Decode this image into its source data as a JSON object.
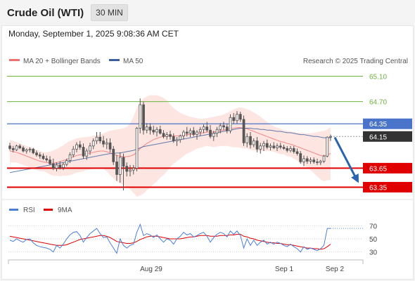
{
  "header": {
    "title": "Crude Oil (WTI)",
    "timeframe": "30 MIN",
    "datetime": "Monday, September 1, 2025 9:08:36 AM CET"
  },
  "colors": {
    "resistance_green": "#6db33f",
    "pivot_blue": "#4a74c9",
    "support_red": "#e00000",
    "current_dark": "#333333",
    "ma20": "#f07070",
    "ma50": "#3a5fa0",
    "bollinger": "#fde0dc",
    "candle": "#555555",
    "rsi": "#4a7fd4",
    "rsi_ma": "#e00000",
    "arrow": "#2a64ad"
  },
  "chart_data": [
    {
      "type": "candlestick",
      "title": "",
      "legend": [
        {
          "name": "MA 20 + Bollinger Bands",
          "color": "#f07070"
        },
        {
          "name": "MA 50",
          "color": "#3a5fa0"
        }
      ],
      "legend_placement": "top-left",
      "watermark": "Research © 2025 Trading Central",
      "x_ticks": [
        "Aug 29",
        "Sep 1",
        "Sep 2"
      ],
      "ylim": [
        63.2,
        65.25
      ],
      "levels": [
        {
          "value": 65.1,
          "label": "65.10",
          "kind": "resistance"
        },
        {
          "value": 64.7,
          "label": "64.70",
          "kind": "resistance"
        },
        {
          "value": 64.35,
          "label": "64.35",
          "kind": "pivot"
        },
        {
          "value": 64.15,
          "label": "64.15",
          "kind": "current"
        },
        {
          "value": 63.65,
          "label": "63.65",
          "kind": "support"
        },
        {
          "value": 63.35,
          "label": "63.35",
          "kind": "support"
        }
      ],
      "ohlc": [
        [
          64.0,
          64.05,
          63.93,
          63.96
        ],
        [
          63.96,
          64.0,
          63.9,
          63.94
        ],
        [
          63.94,
          64.02,
          63.92,
          64.0
        ],
        [
          64.0,
          64.03,
          63.95,
          63.97
        ],
        [
          63.97,
          64.0,
          63.9,
          63.92
        ],
        [
          63.92,
          63.96,
          63.88,
          63.94
        ],
        [
          63.94,
          63.98,
          63.9,
          63.95
        ],
        [
          63.95,
          63.97,
          63.87,
          63.89
        ],
        [
          63.89,
          63.93,
          63.83,
          63.86
        ],
        [
          63.86,
          63.9,
          63.8,
          63.84
        ],
        [
          63.84,
          63.88,
          63.78,
          63.8
        ],
        [
          63.8,
          63.85,
          63.75,
          63.78
        ],
        [
          63.78,
          63.84,
          63.7,
          63.72
        ],
        [
          63.72,
          63.8,
          63.62,
          63.65
        ],
        [
          63.65,
          63.74,
          63.6,
          63.7
        ],
        [
          63.7,
          63.76,
          63.63,
          63.66
        ],
        [
          63.66,
          63.74,
          63.62,
          63.71
        ],
        [
          63.71,
          63.8,
          63.68,
          63.77
        ],
        [
          63.77,
          63.9,
          63.73,
          63.86
        ],
        [
          63.86,
          64.0,
          63.82,
          63.95
        ],
        [
          63.95,
          64.06,
          63.9,
          64.02
        ],
        [
          64.02,
          64.08,
          63.94,
          63.98
        ],
        [
          63.98,
          64.04,
          63.8,
          63.84
        ],
        [
          63.84,
          63.96,
          63.78,
          63.92
        ],
        [
          63.92,
          64.05,
          63.86,
          64.0
        ],
        [
          64.0,
          64.12,
          63.95,
          64.08
        ],
        [
          64.08,
          64.22,
          64.03,
          64.14
        ],
        [
          64.14,
          64.22,
          64.04,
          64.08
        ],
        [
          64.08,
          64.16,
          63.98,
          64.03
        ],
        [
          64.03,
          64.12,
          63.95,
          64.05
        ],
        [
          64.05,
          64.12,
          63.9,
          63.95
        ],
        [
          63.95,
          64.0,
          63.7,
          63.75
        ],
        [
          63.75,
          63.86,
          63.45,
          63.55
        ],
        [
          63.55,
          63.9,
          63.42,
          63.82
        ],
        [
          63.82,
          63.88,
          63.3,
          63.68
        ],
        [
          63.68,
          63.74,
          63.52,
          63.6
        ],
        [
          63.6,
          63.7,
          63.52,
          63.62
        ],
        [
          63.62,
          63.7,
          63.55,
          63.65
        ],
        [
          63.65,
          64.3,
          63.6,
          64.28
        ],
        [
          64.28,
          64.75,
          64.2,
          64.65
        ],
        [
          64.65,
          64.7,
          64.18,
          64.25
        ],
        [
          64.25,
          64.36,
          64.2,
          64.3
        ],
        [
          64.3,
          64.36,
          64.18,
          64.25
        ],
        [
          64.25,
          64.32,
          64.18,
          64.22
        ],
        [
          64.22,
          64.3,
          64.15,
          64.26
        ],
        [
          64.26,
          64.32,
          64.18,
          64.2
        ],
        [
          64.2,
          64.25,
          64.12,
          64.15
        ],
        [
          64.15,
          64.22,
          64.1,
          64.18
        ],
        [
          64.18,
          64.24,
          64.1,
          64.15
        ],
        [
          64.15,
          64.2,
          64.05,
          64.08
        ],
        [
          64.08,
          64.14,
          64.0,
          64.1
        ],
        [
          64.1,
          64.18,
          64.05,
          64.16
        ],
        [
          64.16,
          64.25,
          64.1,
          64.22
        ],
        [
          64.22,
          64.3,
          64.15,
          64.2
        ],
        [
          64.2,
          64.28,
          64.14,
          64.24
        ],
        [
          64.24,
          64.3,
          64.15,
          64.18
        ],
        [
          64.18,
          64.25,
          64.1,
          64.22
        ],
        [
          64.22,
          64.3,
          64.16,
          64.26
        ],
        [
          64.26,
          64.34,
          64.2,
          64.3
        ],
        [
          64.3,
          64.38,
          64.22,
          64.25
        ],
        [
          64.25,
          64.33,
          64.12,
          64.15
        ],
        [
          64.15,
          64.24,
          64.08,
          64.2
        ],
        [
          64.2,
          64.3,
          64.14,
          64.26
        ],
        [
          64.26,
          64.36,
          64.2,
          64.32
        ],
        [
          64.32,
          64.38,
          64.25,
          64.3
        ],
        [
          64.3,
          64.35,
          64.2,
          64.24
        ],
        [
          64.24,
          64.5,
          64.2,
          64.45
        ],
        [
          64.45,
          64.52,
          64.35,
          64.4
        ],
        [
          64.4,
          64.55,
          64.35,
          64.5
        ],
        [
          64.5,
          64.54,
          64.38,
          64.42
        ],
        [
          64.42,
          64.48,
          64.0,
          64.05
        ],
        [
          64.05,
          64.2,
          63.98,
          64.15
        ],
        [
          64.15,
          64.22,
          63.96,
          64.02
        ],
        [
          64.02,
          64.12,
          63.98,
          64.08
        ],
        [
          64.08,
          64.14,
          63.9,
          63.95
        ],
        [
          63.95,
          64.05,
          63.88,
          64.0
        ],
        [
          64.0,
          64.08,
          63.92,
          64.04
        ],
        [
          64.04,
          64.1,
          63.95,
          63.98
        ],
        [
          63.98,
          64.04,
          63.93,
          64.0
        ],
        [
          64.0,
          64.06,
          63.95,
          63.97
        ],
        [
          63.97,
          64.04,
          63.92,
          64.0
        ],
        [
          64.0,
          64.05,
          63.95,
          63.98
        ],
        [
          63.98,
          64.02,
          63.94,
          63.96
        ],
        [
          63.96,
          64.0,
          63.9,
          63.93
        ],
        [
          63.93,
          64.0,
          63.9,
          63.96
        ],
        [
          63.96,
          64.0,
          63.88,
          63.91
        ],
        [
          63.91,
          63.96,
          63.85,
          63.88
        ],
        [
          63.88,
          63.92,
          63.72,
          63.75
        ],
        [
          63.75,
          63.85,
          63.68,
          63.8
        ],
        [
          63.8,
          63.84,
          63.72,
          63.76
        ],
        [
          63.76,
          63.82,
          63.72,
          63.78
        ],
        [
          63.78,
          63.82,
          63.72,
          63.75
        ],
        [
          63.75,
          63.8,
          63.7,
          63.74
        ],
        [
          63.74,
          63.78,
          63.7,
          63.76
        ],
        [
          63.76,
          63.86,
          63.73,
          63.84
        ],
        [
          63.84,
          64.15,
          63.82,
          64.14
        ],
        [
          64.14,
          64.18,
          64.08,
          64.15
        ]
      ],
      "ma20": [
        63.92,
        63.91,
        63.9,
        63.88,
        63.86,
        63.84,
        63.82,
        63.8,
        63.78,
        63.76,
        63.75,
        63.74,
        63.73,
        63.73,
        63.74,
        63.75,
        63.77,
        63.79,
        63.81,
        63.83,
        63.85,
        63.86,
        63.87,
        63.88,
        63.89,
        63.9,
        63.91,
        63.92,
        63.92,
        63.91,
        63.89,
        63.87,
        63.85,
        63.84,
        63.83,
        63.83,
        63.84,
        63.86,
        63.9,
        63.96,
        64.0,
        64.04,
        64.07,
        64.1,
        64.12,
        64.14,
        64.15,
        64.16,
        64.16,
        64.16,
        64.16,
        64.16,
        64.17,
        64.18,
        64.18,
        64.19,
        64.2,
        64.2,
        64.21,
        64.22,
        64.22,
        64.22,
        64.23,
        64.24,
        64.25,
        64.26,
        64.27,
        64.28,
        64.29,
        64.29,
        64.28,
        64.27,
        64.25,
        64.23,
        64.21,
        64.19,
        64.17,
        64.15,
        64.13,
        64.11,
        64.09,
        64.07,
        64.06,
        64.04,
        64.03,
        64.01,
        63.99,
        63.97,
        63.95,
        63.93,
        63.91,
        63.89,
        63.87,
        63.85,
        63.84,
        63.86,
        63.88
      ],
      "ma50": [
        63.58,
        63.59,
        63.6,
        63.61,
        63.62,
        63.63,
        63.64,
        63.65,
        63.66,
        63.67,
        63.68,
        63.69,
        63.7,
        63.71,
        63.72,
        63.73,
        63.74,
        63.75,
        63.76,
        63.77,
        63.78,
        63.79,
        63.8,
        63.81,
        63.82,
        63.83,
        63.84,
        63.85,
        63.86,
        63.87,
        63.88,
        63.88,
        63.89,
        63.89,
        63.9,
        63.91,
        63.92,
        63.93,
        63.95,
        63.97,
        63.99,
        64.0,
        64.01,
        64.02,
        64.03,
        64.04,
        64.05,
        64.06,
        64.07,
        64.08,
        64.09,
        64.1,
        64.11,
        64.12,
        64.13,
        64.14,
        64.15,
        64.16,
        64.17,
        64.18,
        64.19,
        64.2,
        64.21,
        64.22,
        64.23,
        64.24,
        64.25,
        64.26,
        64.27,
        64.28,
        64.28,
        64.28,
        64.28,
        64.27,
        64.27,
        64.26,
        64.26,
        64.25,
        64.25,
        64.24,
        64.23,
        64.23,
        64.22,
        64.21,
        64.21,
        64.2,
        64.19,
        64.18,
        64.18,
        64.17,
        64.16,
        64.15,
        64.15,
        64.14,
        64.13,
        64.13,
        64.13
      ],
      "bb_upper": [
        64.1,
        64.08,
        64.06,
        64.04,
        64.02,
        64.0,
        63.98,
        63.96,
        63.94,
        63.92,
        63.9,
        63.9,
        63.91,
        63.93,
        63.95,
        63.98,
        64.01,
        64.05,
        64.08,
        64.1,
        64.12,
        64.13,
        64.14,
        64.14,
        64.15,
        64.16,
        64.17,
        64.18,
        64.2,
        64.22,
        64.24,
        64.25,
        64.26,
        64.27,
        64.28,
        64.3,
        64.36,
        64.46,
        64.6,
        64.7,
        64.75,
        64.78,
        64.8,
        64.8,
        64.8,
        64.78,
        64.76,
        64.72,
        64.65,
        64.6,
        64.56,
        64.52,
        64.5,
        64.48,
        64.46,
        64.45,
        64.44,
        64.43,
        64.43,
        64.44,
        64.45,
        64.46,
        64.47,
        64.48,
        64.5,
        64.52,
        64.55,
        64.58,
        64.6,
        64.61,
        64.6,
        64.58,
        64.56,
        64.53,
        64.5,
        64.46,
        64.42,
        64.38,
        64.34,
        64.31,
        64.29,
        64.27,
        64.25,
        64.24,
        64.23,
        64.22,
        64.21,
        64.21,
        64.2,
        64.2,
        64.2,
        64.21,
        64.22,
        64.23,
        64.24,
        64.26,
        64.3
      ],
      "bb_lower": [
        63.74,
        63.74,
        63.74,
        63.72,
        63.7,
        63.68,
        63.66,
        63.64,
        63.62,
        63.6,
        63.6,
        63.58,
        63.55,
        63.53,
        63.53,
        63.52,
        63.53,
        63.53,
        63.54,
        63.56,
        63.58,
        63.59,
        63.6,
        63.62,
        63.63,
        63.64,
        63.65,
        63.66,
        63.64,
        63.6,
        63.54,
        63.49,
        63.44,
        63.41,
        63.38,
        63.36,
        63.32,
        63.26,
        63.2,
        63.22,
        63.25,
        63.3,
        63.34,
        63.4,
        63.44,
        63.5,
        63.54,
        63.6,
        63.67,
        63.72,
        63.76,
        63.8,
        63.84,
        63.88,
        63.9,
        63.93,
        63.96,
        63.97,
        63.99,
        64.0,
        63.99,
        63.98,
        63.99,
        64.0,
        64.0,
        64.0,
        63.99,
        63.98,
        63.98,
        63.97,
        63.96,
        63.96,
        63.94,
        63.93,
        63.92,
        63.92,
        63.92,
        63.92,
        63.92,
        63.91,
        63.89,
        63.87,
        63.87,
        63.84,
        63.83,
        63.8,
        63.77,
        63.73,
        63.7,
        63.66,
        63.62,
        63.57,
        63.52,
        63.47,
        63.44,
        63.46,
        63.46
      ]
    },
    {
      "type": "line",
      "legend": [
        {
          "name": "RSI",
          "color": "#4a7fd4"
        },
        {
          "name": "9MA",
          "color": "#e00000"
        }
      ],
      "ylim": [
        20,
        80
      ],
      "y_ticks": [
        70,
        50,
        30
      ],
      "rsi": [
        48,
        46,
        50,
        47,
        45,
        49,
        50,
        44,
        40,
        38,
        37,
        36,
        34,
        30,
        40,
        36,
        42,
        50,
        56,
        60,
        61,
        55,
        45,
        52,
        58,
        62,
        66,
        58,
        52,
        53,
        44,
        36,
        28,
        50,
        40,
        36,
        40,
        42,
        60,
        72,
        55,
        58,
        56,
        52,
        56,
        50,
        45,
        50,
        48,
        42,
        50,
        54,
        60,
        56,
        58,
        53,
        55,
        58,
        60,
        54,
        45,
        52,
        57,
        60,
        58,
        53,
        62,
        57,
        62,
        55,
        36,
        50,
        40,
        48,
        40,
        45,
        48,
        42,
        45,
        42,
        45,
        43,
        40,
        38,
        42,
        38,
        35,
        30,
        38,
        34,
        36,
        34,
        32,
        35,
        40,
        66,
        66
      ],
      "rsi_ma": [
        54,
        53,
        52,
        51,
        50,
        49,
        48,
        47,
        46,
        45,
        44,
        43,
        42,
        41,
        40,
        40,
        40,
        41,
        43,
        45,
        47,
        49,
        50,
        51,
        52,
        53,
        54,
        55,
        55,
        54,
        52,
        49,
        46,
        45,
        44,
        43,
        43,
        44,
        46,
        49,
        51,
        53,
        54,
        54,
        54,
        53,
        52,
        51,
        50,
        50,
        50,
        50,
        51,
        52,
        53,
        53,
        54,
        55,
        55,
        55,
        54,
        54,
        54,
        55,
        55,
        55,
        56,
        56,
        57,
        57,
        54,
        53,
        51,
        50,
        48,
        47,
        46,
        45,
        44,
        44,
        43,
        43,
        42,
        41,
        41,
        40,
        39,
        38,
        37,
        36,
        36,
        35,
        35,
        34,
        35,
        38,
        42
      ]
    }
  ]
}
